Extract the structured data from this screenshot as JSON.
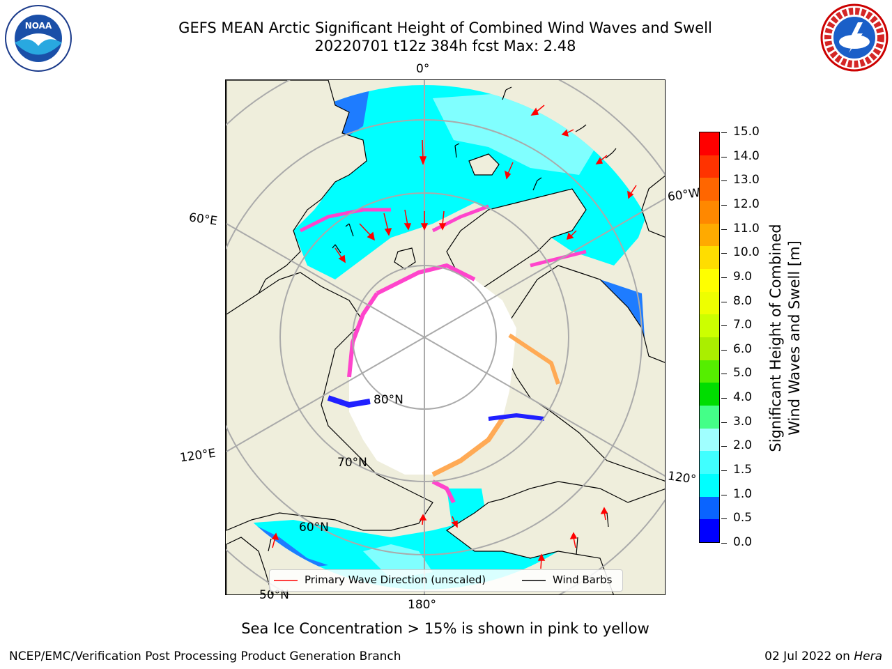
{
  "title_line1": "GEFS MEAN Arctic Significant Height of Combined Wind Waves and Swell",
  "title_line2": "20220701 t12z 384h fcst   Max: 2.48",
  "map": {
    "longitude_labels": [
      "0°",
      "60°E",
      "120°E",
      "180°",
      "120°",
      "60°W"
    ],
    "latitude_labels": [
      "80°N",
      "70°N",
      "60°N",
      "50°N"
    ],
    "colors": {
      "land": "#efeedc",
      "ice_free_low": "#00ffff",
      "ice": "#ffffff",
      "ice_edge": "#ff44cc",
      "ice_edge2": "#ffaa55",
      "deep_blue": "#1e7cff"
    }
  },
  "legend": {
    "wave_label": "Primary Wave Direction (unscaled)",
    "wind_label": "Wind Barbs",
    "wave_color": "#ff0000",
    "wind_color": "#000000"
  },
  "colorbar": {
    "label": "Significant Height of Combined Wind Waves and Swell [m]",
    "label_line1": "Significant Height of Combined",
    "label_line2": "Wind Waves and Swell [m]",
    "ticks": [
      "15.0",
      "14.0",
      "13.0",
      "12.0",
      "11.0",
      "10.0",
      "9.0",
      "8.0",
      "7.0",
      "6.0",
      "5.0",
      "4.0",
      "3.0",
      "2.0",
      "1.5",
      "1.0",
      "0.5",
      "0.0"
    ],
    "colors": [
      "#0000ff",
      "#0a64ff",
      "#00ffff",
      "#40ffff",
      "#a0ffff",
      "#44ff88",
      "#00dd00",
      "#55ee00",
      "#aaee00",
      "#ccff00",
      "#eeff00",
      "#ffff00",
      "#ffdd00",
      "#ffaa00",
      "#ff8800",
      "#ff6600",
      "#ff3300",
      "#ff0000"
    ]
  },
  "note": "Sea Ice Concentration > 15% is shown in pink to yellow",
  "footer_left": "NCEP/EMC/Verification Post Processing Product Generation Branch",
  "footer_right_prefix": "02 Jul 2022 on ",
  "footer_right_host": "Hera",
  "logos": {
    "noaa_text": "NOAA",
    "nws_text": "NATIONAL WEATHER SERVICE"
  }
}
